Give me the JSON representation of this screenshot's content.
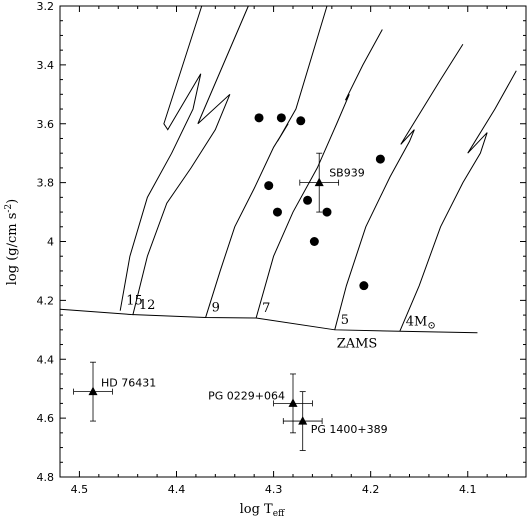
{
  "chart_data": {
    "type": "scatter",
    "title": "",
    "xlabel": "log T",
    "xlabel_sub": "eff",
    "ylabel": "log (g/cm s",
    "ylabel_sup": "-2",
    "ylabel_close": ")",
    "xlim": [
      4.52,
      4.04
    ],
    "ylim": [
      4.8,
      3.2
    ],
    "x_ticks": [
      4.5,
      4.4,
      4.3,
      4.2,
      4.1
    ],
    "x_tick_labels": [
      "4.5",
      "4.4",
      "4.3",
      "4.2",
      "4.1"
    ],
    "y_ticks": [
      3.2,
      3.4,
      3.6,
      3.8,
      4.0,
      4.2,
      4.4,
      4.6,
      4.8
    ],
    "y_tick_labels": [
      "3.2",
      "3.4",
      "3.6",
      "3.8",
      "4",
      "4.2",
      "4.4",
      "4.6",
      "4.8"
    ],
    "zams": {
      "label": "ZAMS",
      "points": [
        [
          4.52,
          4.23
        ],
        [
          4.447,
          4.248
        ],
        [
          4.37,
          4.258
        ],
        [
          4.318,
          4.26
        ],
        [
          4.237,
          4.3
        ],
        [
          4.17,
          4.305
        ],
        [
          4.09,
          4.31
        ]
      ]
    },
    "tracks": [
      {
        "label": "15",
        "label_sup": "",
        "points": [
          [
            4.458,
            4.235
          ],
          [
            4.448,
            4.05
          ],
          [
            4.43,
            3.85
          ],
          [
            4.405,
            3.7
          ],
          [
            4.383,
            3.55
          ],
          [
            4.375,
            3.43
          ],
          [
            4.409,
            3.62
          ],
          [
            4.413,
            3.6
          ],
          [
            4.374,
            3.2
          ]
        ]
      },
      {
        "label": "12",
        "label_sup": "",
        "points": [
          [
            4.445,
            4.25
          ],
          [
            4.43,
            4.05
          ],
          [
            4.41,
            3.87
          ],
          [
            4.385,
            3.75
          ],
          [
            4.36,
            3.62
          ],
          [
            4.345,
            3.5
          ],
          [
            4.378,
            3.6
          ],
          [
            4.326,
            3.2
          ]
        ]
      },
      {
        "label": "9",
        "label_sup": "",
        "points": [
          [
            4.37,
            4.258
          ],
          [
            4.355,
            4.1
          ],
          [
            4.34,
            3.95
          ],
          [
            4.32,
            3.82
          ],
          [
            4.3,
            3.68
          ],
          [
            4.285,
            3.6
          ],
          [
            4.296,
            3.66
          ],
          [
            4.277,
            3.55
          ],
          [
            4.245,
            3.2
          ]
        ]
      },
      {
        "label": "7",
        "label_sup": "",
        "points": [
          [
            4.318,
            4.26
          ],
          [
            4.3,
            4.05
          ],
          [
            4.28,
            3.9
          ],
          [
            4.255,
            3.75
          ],
          [
            4.235,
            3.6
          ],
          [
            4.222,
            3.5
          ],
          [
            4.226,
            3.52
          ],
          [
            4.208,
            3.4
          ],
          [
            4.188,
            3.28
          ]
        ]
      },
      {
        "label": "5",
        "label_sup": "",
        "points": [
          [
            4.237,
            4.3
          ],
          [
            4.225,
            4.15
          ],
          [
            4.205,
            3.95
          ],
          [
            4.18,
            3.78
          ],
          [
            4.16,
            3.66
          ],
          [
            4.155,
            3.62
          ],
          [
            4.169,
            3.67
          ],
          [
            4.128,
            3.45
          ],
          [
            4.105,
            3.33
          ]
        ]
      },
      {
        "label": "4M",
        "label_sup": "⊙",
        "points": [
          [
            4.17,
            4.305
          ],
          [
            4.15,
            4.15
          ],
          [
            4.128,
            3.95
          ],
          [
            4.105,
            3.8
          ],
          [
            4.087,
            3.7
          ],
          [
            4.08,
            3.63
          ],
          [
            4.1,
            3.7
          ],
          [
            4.072,
            3.55
          ],
          [
            4.05,
            3.42
          ]
        ]
      }
    ],
    "circles": [
      {
        "x": 4.315,
        "y": 3.58
      },
      {
        "x": 4.292,
        "y": 3.58
      },
      {
        "x": 4.272,
        "y": 3.59
      },
      {
        "x": 4.305,
        "y": 3.81
      },
      {
        "x": 4.296,
        "y": 3.9
      },
      {
        "x": 4.265,
        "y": 3.86
      },
      {
        "x": 4.245,
        "y": 3.9
      },
      {
        "x": 4.258,
        "y": 4.0
      },
      {
        "x": 4.19,
        "y": 3.72
      },
      {
        "x": 4.207,
        "y": 4.15
      }
    ],
    "stars": [
      {
        "name": "SB939",
        "x": 4.253,
        "y": 3.8,
        "xerr": 0.02,
        "yerr": 0.1
      },
      {
        "name": "HD 76431",
        "x": 4.486,
        "y": 4.51,
        "xerr": 0.02,
        "yerr": 0.1
      },
      {
        "name": "PG 0229+064",
        "x": 4.28,
        "y": 4.55,
        "xerr": 0.02,
        "yerr": 0.1
      },
      {
        "name": "PG 1400+389",
        "x": 4.27,
        "y": 4.61,
        "xerr": 0.02,
        "yerr": 0.1
      }
    ]
  }
}
